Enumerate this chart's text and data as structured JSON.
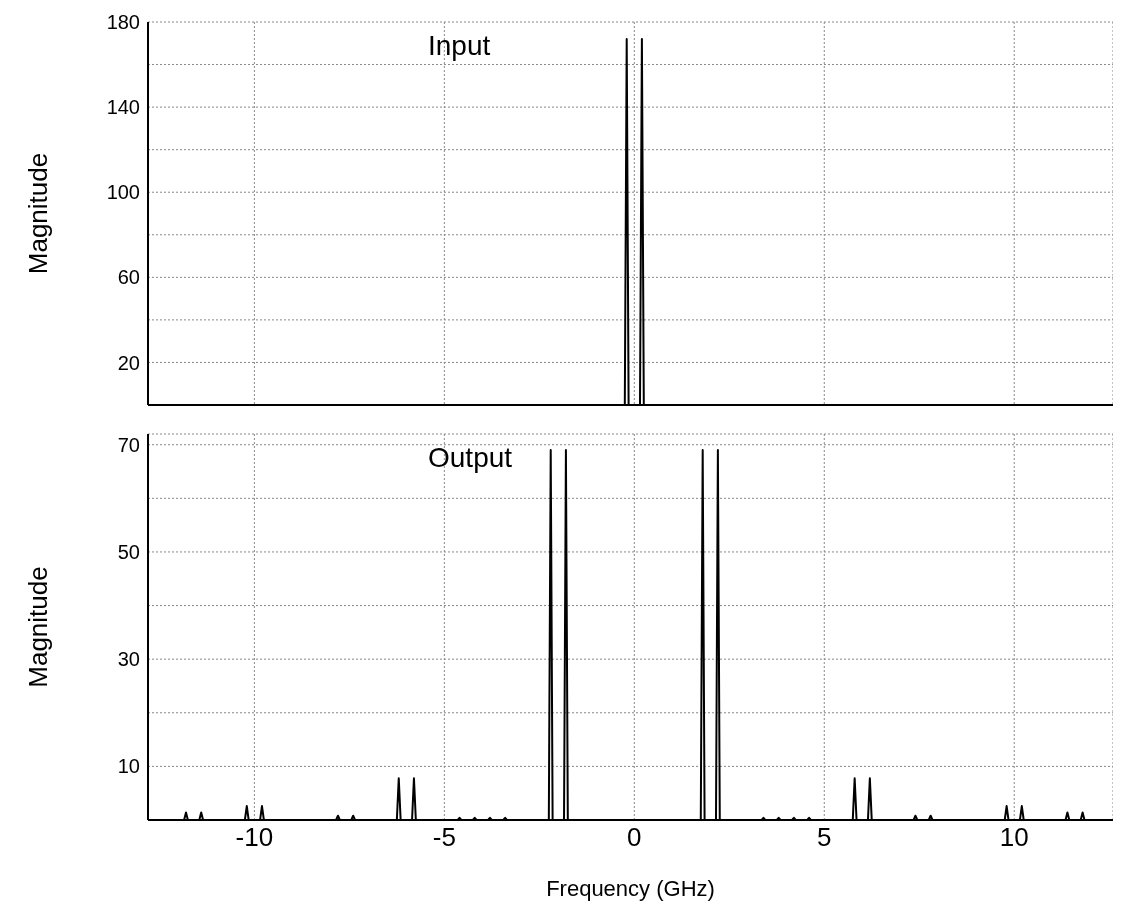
{
  "chart_data": [
    {
      "type": "line",
      "ylabel": "Magnitude",
      "annotations": [
        "Input"
      ],
      "color": "#000000",
      "x": [
        -12.8,
        -0.25,
        -0.2,
        -0.15,
        0.15,
        0.2,
        0.25,
        12.6
      ],
      "values": [
        0,
        0,
        172,
        0,
        0,
        172,
        0,
        0
      ],
      "xlim": [
        -12.8,
        12.6
      ],
      "xticks": [
        -10,
        -5,
        0,
        5,
        10
      ],
      "ylim": [
        0,
        180
      ],
      "yticks": [
        20,
        {
          "value": 40,
          "label": null
        },
        60,
        {
          "value": 80,
          "label": null
        },
        100,
        {
          "value": 120,
          "label": null
        },
        140,
        {
          "value": 160,
          "label": null
        },
        180
      ],
      "grid": true,
      "tick_labels": "y",
      "line_style": "solid"
    },
    {
      "type": "line",
      "ylabel": "Magnitude",
      "xlabel": "Frequency (GHz)",
      "annotations": [
        "Output"
      ],
      "color": "#000000",
      "x": [
        -12.8,
        -11.85,
        -11.8,
        -11.75,
        -11.45,
        -11.4,
        -11.35,
        -10.25,
        -10.2,
        -10.15,
        -9.85,
        -9.8,
        -9.75,
        -7.85,
        -7.8,
        -7.75,
        -7.45,
        -7.4,
        -7.35,
        -6.25,
        -6.2,
        -6.15,
        -5.85,
        -5.8,
        -5.75,
        -4.65,
        -4.6,
        -4.55,
        -4.25,
        -4.2,
        -4.15,
        -3.85,
        -3.8,
        -3.75,
        -3.45,
        -3.4,
        -3.35,
        -2.25,
        -2.2,
        -2.15,
        -1.85,
        -1.8,
        -1.75,
        1.75,
        1.8,
        1.85,
        2.15,
        2.2,
        2.25,
        3.35,
        3.4,
        3.45,
        3.75,
        3.8,
        3.85,
        4.15,
        4.2,
        4.25,
        4.55,
        4.6,
        4.65,
        5.75,
        5.8,
        5.85,
        6.15,
        6.2,
        6.25,
        7.35,
        7.4,
        7.45,
        7.75,
        7.8,
        7.85,
        9.75,
        9.8,
        9.85,
        10.15,
        10.2,
        10.25,
        11.35,
        11.4,
        11.45,
        11.75,
        11.8,
        11.85,
        12.6
      ],
      "values": [
        0,
        0,
        1.4,
        0,
        0,
        1.4,
        0,
        0,
        2.6,
        0,
        0,
        2.6,
        0,
        0,
        0.8,
        0,
        0,
        0.8,
        0,
        0,
        7.8,
        0,
        0,
        7.8,
        0,
        0,
        0.4,
        0,
        0,
        0.4,
        0,
        0,
        0.4,
        0,
        0,
        0.4,
        0,
        0,
        69,
        0,
        0,
        69,
        0,
        0,
        69,
        0,
        0,
        69,
        0,
        0,
        0.4,
        0,
        0,
        0.4,
        0,
        0,
        0.4,
        0,
        0,
        0.4,
        0,
        0,
        7.8,
        0,
        0,
        7.8,
        0,
        0,
        0.8,
        0,
        0,
        0.8,
        0,
        0,
        2.6,
        0,
        0,
        2.6,
        0,
        0,
        1.4,
        0,
        0,
        1.4,
        0,
        0
      ],
      "xlim": [
        -12.8,
        12.6
      ],
      "xticks": [
        -10,
        -5,
        0,
        5,
        10
      ],
      "ylim": [
        0,
        72
      ],
      "yticks": [
        10,
        {
          "value": 20,
          "label": null
        },
        30,
        {
          "value": 40,
          "label": null
        },
        50,
        {
          "value": 60,
          "label": null
        },
        70
      ],
      "grid": true,
      "line_style": "solid"
    }
  ]
}
